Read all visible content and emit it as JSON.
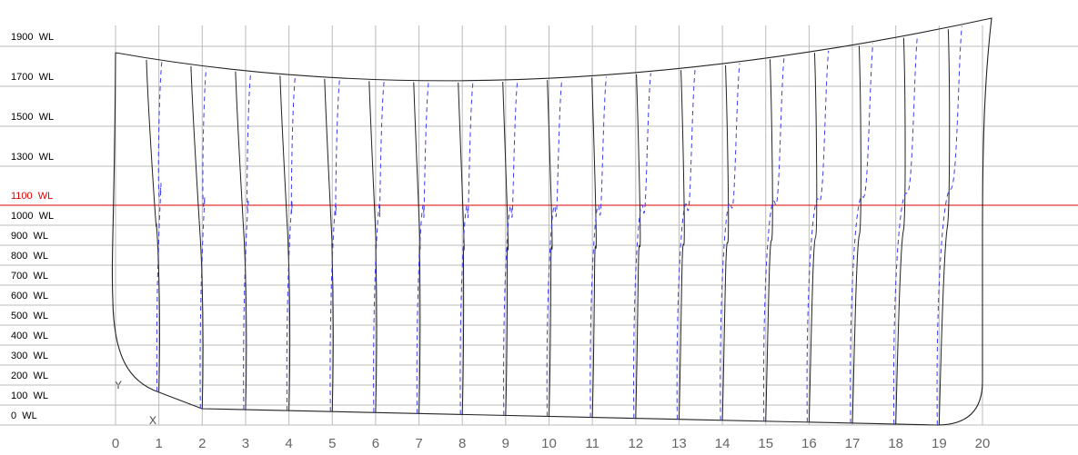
{
  "waterlines": [
    {
      "label": "0  WL",
      "color": "#000000"
    },
    {
      "label": "100  WL",
      "color": "#000000"
    },
    {
      "label": "200  WL",
      "color": "#000000"
    },
    {
      "label": "300  WL",
      "color": "#000000"
    },
    {
      "label": "400  WL",
      "color": "#000000"
    },
    {
      "label": "500  WL",
      "color": "#000000"
    },
    {
      "label": "600  WL",
      "color": "#000000"
    },
    {
      "label": "700  WL",
      "color": "#000000"
    },
    {
      "label": "800  WL",
      "color": "#000000"
    },
    {
      "label": "900  WL",
      "color": "#000000"
    },
    {
      "label": "1000  WL",
      "color": "#000000"
    },
    {
      "label": "1100  WL",
      "color": "#e00000"
    },
    {
      "label": "1300  WL",
      "color": "#000000"
    },
    {
      "label": "1500  WL",
      "color": "#000000"
    },
    {
      "label": "1700  WL",
      "color": "#000000"
    },
    {
      "label": "1900  WL",
      "color": "#000000"
    }
  ],
  "stations": [
    "0",
    "1",
    "2",
    "3",
    "4",
    "5",
    "6",
    "7",
    "8",
    "9",
    "10",
    "11",
    "12",
    "13",
    "14",
    "15",
    "16",
    "17",
    "18",
    "19",
    "20"
  ],
  "axis": {
    "x": "X",
    "y": "Y"
  }
}
